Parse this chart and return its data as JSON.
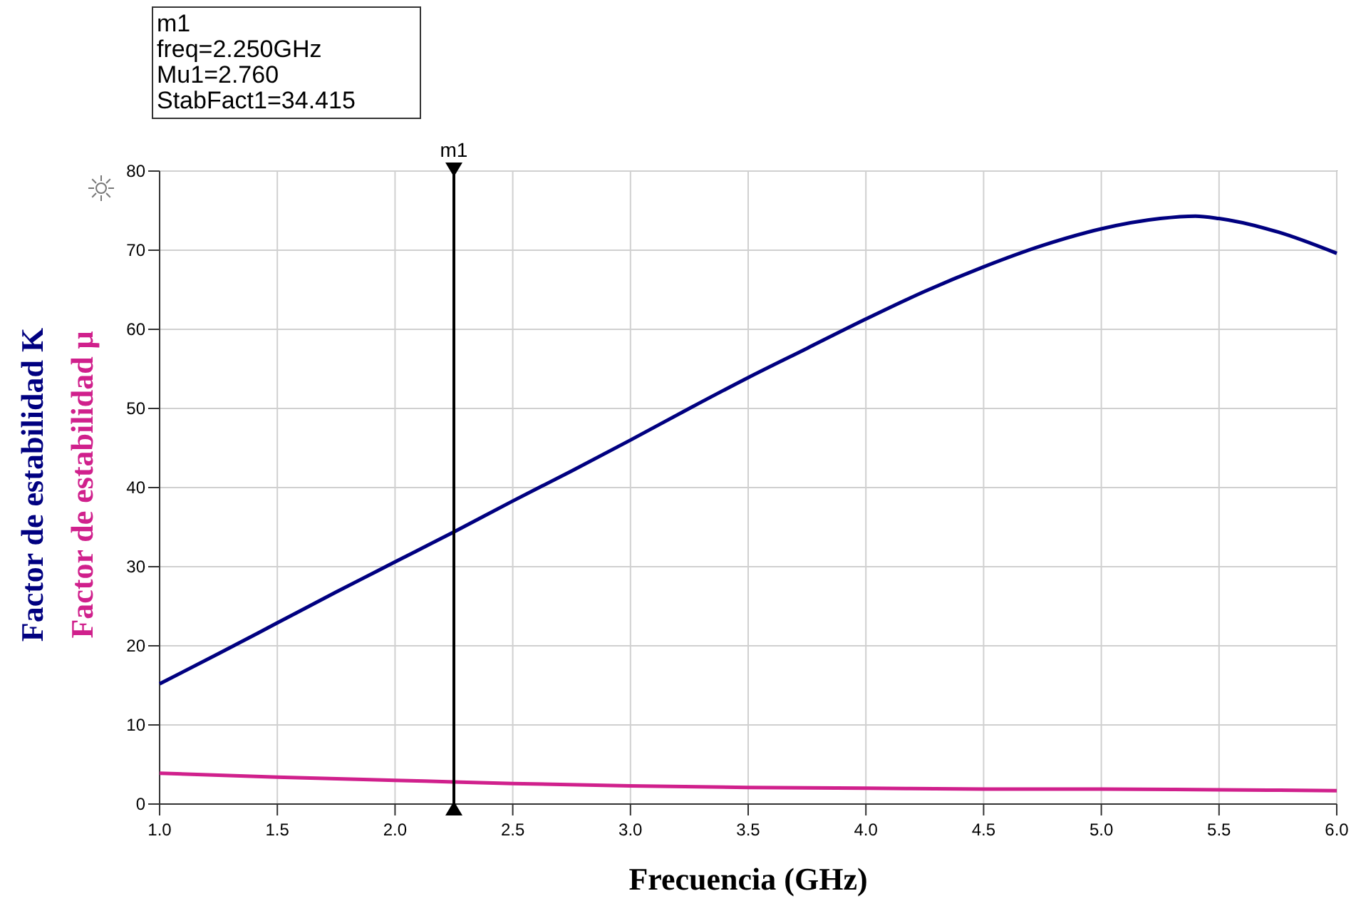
{
  "chart_data": {
    "type": "line",
    "xlabel": "Frecuencia (GHz)",
    "x": [
      1.0,
      1.25,
      1.5,
      1.75,
      2.0,
      2.25,
      2.5,
      2.75,
      3.0,
      3.25,
      3.5,
      3.75,
      4.0,
      4.25,
      4.5,
      4.75,
      5.0,
      5.25,
      5.4,
      5.5,
      5.75,
      6.0
    ],
    "series": [
      {
        "name": "Factor de estabilidad K",
        "color": "#000080",
        "values": [
          15.2,
          19.0,
          22.9,
          26.8,
          30.6,
          34.4,
          38.3,
          42.1,
          46.0,
          50.0,
          53.9,
          57.6,
          61.3,
          64.8,
          67.9,
          70.6,
          72.7,
          74.0,
          74.3,
          74.0,
          72.3,
          69.6
        ]
      },
      {
        "name": "Factor de estabilidad μ",
        "color": "#d0208c",
        "x": [
          1.0,
          1.5,
          2.0,
          2.25,
          2.5,
          3.0,
          3.5,
          4.0,
          4.5,
          5.0,
          5.5,
          6.0
        ],
        "values": [
          3.9,
          3.4,
          3.0,
          2.8,
          2.6,
          2.3,
          2.1,
          2.0,
          1.9,
          1.9,
          1.8,
          1.7
        ]
      }
    ],
    "xlim": [
      1.0,
      6.0
    ],
    "xticks": [
      {
        "value": 1,
        "label": "1.0"
      },
      {
        "value": 1.5,
        "label": "1.5"
      },
      {
        "value": 2,
        "label": "2.0"
      },
      {
        "value": 2.5,
        "label": "2.5"
      },
      {
        "value": 3,
        "label": "3.0"
      },
      {
        "value": 3.5,
        "label": "3.5"
      },
      {
        "value": 4,
        "label": "4.0"
      },
      {
        "value": 4.5,
        "label": "4.5"
      },
      {
        "value": 5,
        "label": "5.0"
      },
      {
        "value": 5.5,
        "label": "5.5"
      },
      {
        "value": 6,
        "label": "6.0"
      }
    ],
    "ylim": [
      0,
      80
    ],
    "yticks": [
      0,
      10,
      20,
      30,
      40,
      50,
      60,
      70,
      80
    ],
    "grid": true,
    "legend": "left",
    "marker": "none",
    "line_style": "solid",
    "ref_lines": [
      {
        "axis": "x",
        "value": 2.25,
        "label": "m1",
        "color": "#000000"
      }
    ],
    "annotations": [
      "m1\nfreq=2.250GHz\nMu1=2.760\nStabFact1=34.415"
    ]
  }
}
